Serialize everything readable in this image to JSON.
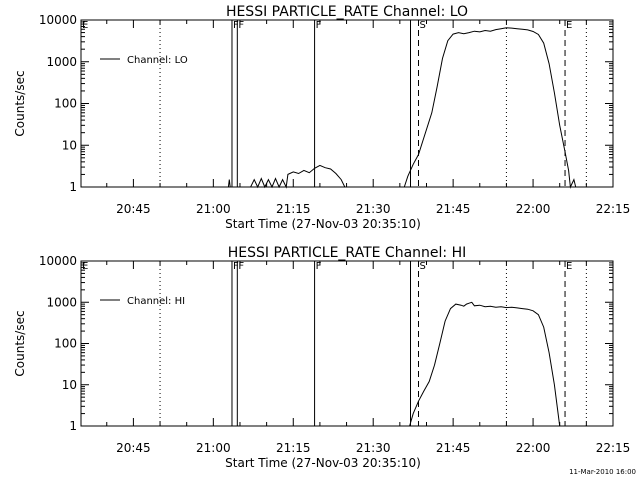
{
  "footer": {
    "generated": "11-Mar-2010 16:00"
  },
  "chart_data": [
    {
      "type": "line",
      "title": "HESSI PARTICLE_RATE Channel: LO",
      "xlabel": "Start Time (27-Nov-03 20:35:10)",
      "ylabel": "Counts/sec",
      "yscale": "log",
      "xlim": [
        "20:35:10",
        "22:15:00"
      ],
      "ylim": [
        1,
        10000
      ],
      "x_ticks": [
        "20:45",
        "21:00",
        "21:15",
        "21:30",
        "21:45",
        "22:00",
        "22:15"
      ],
      "y_ticks": [
        "1",
        "10",
        "100",
        "1000",
        "10000"
      ],
      "legend": {
        "label": "Channel: LO",
        "position": "top-left"
      },
      "markers": [
        {
          "label": "F",
          "time": "21:03:30",
          "style": "solid"
        },
        {
          "label": "F",
          "time": "21:04:30",
          "style": "solid"
        },
        {
          "label": "F",
          "time": "21:19:00",
          "style": "solid"
        },
        {
          "label": "",
          "time": "21:37:00",
          "style": "solid"
        },
        {
          "label": "S",
          "time": "21:38:30",
          "style": "dashed"
        },
        {
          "label": "E",
          "time": "22:06:00",
          "style": "dashed"
        },
        {
          "label": "",
          "time": "20:50:00",
          "style": "dotted"
        },
        {
          "label": "",
          "time": "21:55:00",
          "style": "dotted"
        },
        {
          "label": "",
          "time": "22:10:00",
          "style": "dotted"
        }
      ],
      "series": [
        {
          "name": "Channel: LO",
          "points": [
            [
              "21:02:50",
              1
            ],
            [
              "21:03:00",
              1.5
            ],
            [
              "21:03:10",
              1
            ],
            [
              "21:07:00",
              1
            ],
            [
              "21:07:40",
              1.5
            ],
            [
              "21:08:20",
              1
            ],
            [
              "21:09:00",
              1.6
            ],
            [
              "21:09:40",
              1
            ],
            [
              "21:10:20",
              1.5
            ],
            [
              "21:11:00",
              1
            ],
            [
              "21:11:40",
              1.6
            ],
            [
              "21:12:20",
              1
            ],
            [
              "21:13:00",
              1.5
            ],
            [
              "21:13:40",
              1
            ],
            [
              "21:14:00",
              2
            ],
            [
              "21:15:00",
              2.3
            ],
            [
              "21:16:00",
              2.1
            ],
            [
              "21:17:00",
              2.5
            ],
            [
              "21:18:00",
              2.2
            ],
            [
              "21:19:00",
              2.8
            ],
            [
              "21:20:00",
              3.3
            ],
            [
              "21:21:00",
              2.9
            ],
            [
              "21:22:00",
              2.7
            ],
            [
              "21:23:00",
              2.1
            ],
            [
              "21:24:00",
              1.5
            ],
            [
              "21:24:40",
              1
            ],
            [
              "21:35:50",
              1
            ],
            [
              "21:36:30",
              1.8
            ],
            [
              "21:37:30",
              3.5
            ],
            [
              "21:38:30",
              6
            ],
            [
              "21:39:30",
              15
            ],
            [
              "21:41:00",
              60
            ],
            [
              "21:42:00",
              250
            ],
            [
              "21:43:00",
              1200
            ],
            [
              "21:44:00",
              3200
            ],
            [
              "21:45:00",
              4600
            ],
            [
              "21:46:00",
              5000
            ],
            [
              "21:47:00",
              4700
            ],
            [
              "21:48:00",
              5000
            ],
            [
              "21:49:00",
              5400
            ],
            [
              "21:50:00",
              5200
            ],
            [
              "21:51:00",
              5600
            ],
            [
              "21:52:00",
              5400
            ],
            [
              "21:53:00",
              5900
            ],
            [
              "21:54:00",
              6200
            ],
            [
              "21:55:00",
              6500
            ],
            [
              "21:56:00",
              6400
            ],
            [
              "21:57:00",
              6200
            ],
            [
              "21:58:00",
              6000
            ],
            [
              "21:59:00",
              5800
            ],
            [
              "22:00:00",
              5300
            ],
            [
              "22:01:00",
              4500
            ],
            [
              "22:02:00",
              2800
            ],
            [
              "22:03:00",
              900
            ],
            [
              "22:04:00",
              180
            ],
            [
              "22:05:00",
              30
            ],
            [
              "22:06:00",
              7
            ],
            [
              "22:06:40",
              2.5
            ],
            [
              "22:07:00",
              1
            ],
            [
              "22:07:40",
              1.5
            ],
            [
              "22:08:00",
              1
            ]
          ]
        }
      ]
    },
    {
      "type": "line",
      "title": "HESSI PARTICLE_RATE Channel: HI",
      "xlabel": "Start Time (27-Nov-03 20:35:10)",
      "ylabel": "Counts/sec",
      "yscale": "log",
      "xlim": [
        "20:35:10",
        "22:15:00"
      ],
      "ylim": [
        1,
        10000
      ],
      "x_ticks": [
        "20:45",
        "21:00",
        "21:15",
        "21:30",
        "21:45",
        "22:00",
        "22:15"
      ],
      "y_ticks": [
        "1",
        "10",
        "100",
        "1000",
        "10000"
      ],
      "legend": {
        "label": "Channel: HI",
        "position": "top-left"
      },
      "markers": [
        {
          "label": "F",
          "time": "21:03:30",
          "style": "solid"
        },
        {
          "label": "F",
          "time": "21:04:30",
          "style": "solid"
        },
        {
          "label": "F",
          "time": "21:19:00",
          "style": "solid"
        },
        {
          "label": "",
          "time": "21:37:00",
          "style": "solid"
        },
        {
          "label": "S",
          "time": "21:38:30",
          "style": "dashed"
        },
        {
          "label": "E",
          "time": "22:06:00",
          "style": "dashed"
        },
        {
          "label": "",
          "time": "20:50:00",
          "style": "dotted"
        },
        {
          "label": "",
          "time": "21:55:00",
          "style": "dotted"
        },
        {
          "label": "",
          "time": "22:10:00",
          "style": "dotted"
        }
      ],
      "series": [
        {
          "name": "Channel: HI",
          "points": [
            [
              "21:36:50",
              1
            ],
            [
              "21:37:30",
              2
            ],
            [
              "21:38:30",
              4
            ],
            [
              "21:39:30",
              7
            ],
            [
              "21:40:30",
              12
            ],
            [
              "21:41:30",
              30
            ],
            [
              "21:42:30",
              100
            ],
            [
              "21:43:30",
              350
            ],
            [
              "21:44:30",
              700
            ],
            [
              "21:45:30",
              900
            ],
            [
              "21:46:30",
              850
            ],
            [
              "21:47:00",
              800
            ],
            [
              "21:47:30",
              900
            ],
            [
              "21:48:00",
              950
            ],
            [
              "21:48:30",
              1000
            ],
            [
              "21:49:00",
              820
            ],
            [
              "21:50:00",
              850
            ],
            [
              "21:51:00",
              780
            ],
            [
              "21:52:00",
              800
            ],
            [
              "21:53:00",
              760
            ],
            [
              "21:54:00",
              780
            ],
            [
              "21:55:00",
              740
            ],
            [
              "21:56:00",
              760
            ],
            [
              "21:57:00",
              730
            ],
            [
              "21:58:00",
              700
            ],
            [
              "21:59:00",
              680
            ],
            [
              "22:00:00",
              620
            ],
            [
              "22:01:00",
              500
            ],
            [
              "22:02:00",
              250
            ],
            [
              "22:03:00",
              60
            ],
            [
              "22:04:00",
              10
            ],
            [
              "22:05:00",
              1
            ]
          ]
        }
      ]
    }
  ]
}
